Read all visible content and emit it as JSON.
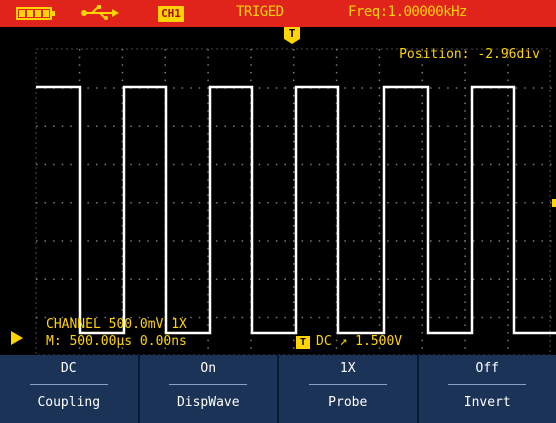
{
  "status_bar": {
    "battery_icon": "battery-icon",
    "usb_icon": "usb-icon",
    "channel_badge": "CH1",
    "trigger_state": "TRIGED",
    "frequency": "Freq:1.00000kHz"
  },
  "screen": {
    "position_text": "Position: -2.96div",
    "trigger_marker": "T",
    "channel_readout": "CHANNEL  500.0mV  1X",
    "timebase_readout": "M: 500.00µs 0.00ns",
    "trigger_badge": "T",
    "trigger_readout": "DC ↗  1.500V"
  },
  "menu": [
    {
      "value": "DC",
      "label": "Coupling"
    },
    {
      "value": "On",
      "label": "DispWave"
    },
    {
      "value": "1X",
      "label": "Probe"
    },
    {
      "value": "Off",
      "label": "Invert"
    }
  ],
  "colors": {
    "status_bar": "#e0241c",
    "annotation": "#ffd400",
    "trace": "#ffffff",
    "menu_bg": "#1c3358",
    "screen_bg": "#000000"
  }
}
